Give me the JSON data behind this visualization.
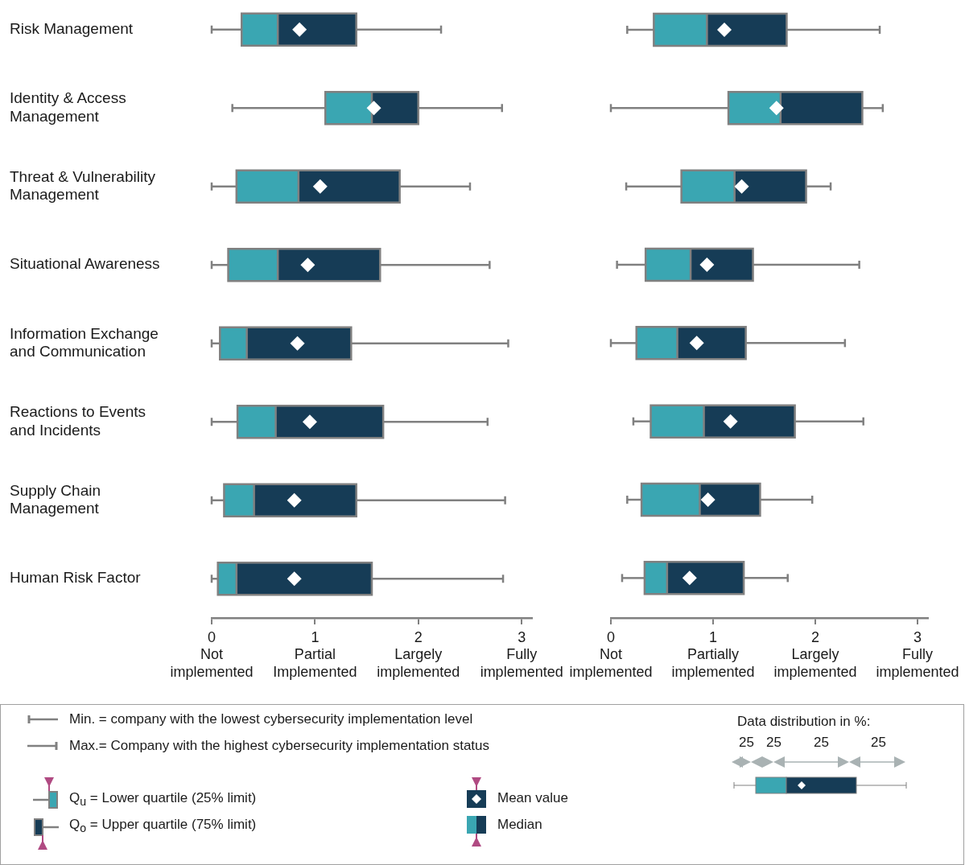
{
  "chart_data": [
    {
      "type": "box",
      "orientation": "horizontal",
      "categories": [
        "Risk Management",
        "Identity & Access Management",
        "Threat & Vulnerability Management",
        "Situational Awareness",
        "Information Exchange and Communication",
        "Reactions to Events and Incidents",
        "Supply Chain Management",
        "Human Risk Factor"
      ],
      "color": "#3aa6b2",
      "xlim": [
        0,
        3.1
      ],
      "xticks": [
        {
          "value": 0,
          "label": "0\nNot\nimplemented"
        },
        {
          "value": 1,
          "label": "1\nPartial\nImplemented"
        },
        {
          "value": 2,
          "label": "2\nLargely\nimplemented"
        },
        {
          "value": 3,
          "label": "3\nFully\nimplemented"
        }
      ],
      "boxes": [
        {
          "low": 0,
          "q1": 0.29,
          "median": 0.64,
          "q3": 1.4,
          "high": 2.22,
          "mean": 0.85
        },
        {
          "low": 0.2,
          "q1": 1.1,
          "median": 1.55,
          "q3": 2.0,
          "high": 2.81,
          "mean": 1.57
        },
        {
          "low": 0,
          "q1": 0.24,
          "median": 0.84,
          "q3": 1.82,
          "high": 2.5,
          "mean": 1.05
        },
        {
          "low": 0,
          "q1": 0.16,
          "median": 0.64,
          "q3": 1.63,
          "high": 2.69,
          "mean": 0.93
        },
        {
          "low": 0,
          "q1": 0.08,
          "median": 0.34,
          "q3": 1.35,
          "high": 2.87,
          "mean": 0.83
        },
        {
          "low": 0,
          "q1": 0.25,
          "median": 0.62,
          "q3": 1.66,
          "high": 2.67,
          "mean": 0.95
        },
        {
          "low": 0,
          "q1": 0.12,
          "median": 0.41,
          "q3": 1.4,
          "high": 2.84,
          "mean": 0.8
        },
        {
          "low": 0,
          "q1": 0.06,
          "median": 0.24,
          "q3": 1.55,
          "high": 2.82,
          "mean": 0.8
        }
      ]
    },
    {
      "type": "box",
      "orientation": "horizontal",
      "tick_labels": "x",
      "categories": [
        null,
        null,
        null,
        null,
        null,
        null,
        null,
        null
      ],
      "color": "#3aa6b2",
      "xlim": [
        0,
        3.1
      ],
      "xticks": [
        {
          "value": 0,
          "label": "0\nNot\nimplemented"
        },
        {
          "value": 1,
          "label": "1\nPartially\nimplemented"
        },
        {
          "value": 2,
          "label": "2\nLargely\nimplemented"
        },
        {
          "value": 3,
          "label": "3\nFully\nimplemented"
        }
      ],
      "boxes": [
        {
          "low": 0.16,
          "q1": 0.42,
          "median": 0.94,
          "q3": 1.72,
          "high": 2.63,
          "mean": 1.11
        },
        {
          "low": 0,
          "q1": 1.15,
          "median": 1.66,
          "q3": 2.46,
          "high": 2.66,
          "mean": 1.62
        },
        {
          "low": 0.15,
          "q1": 0.69,
          "median": 1.21,
          "q3": 1.91,
          "high": 2.15,
          "mean": 1.28
        },
        {
          "low": 0.06,
          "q1": 0.34,
          "median": 0.78,
          "q3": 1.39,
          "high": 2.43,
          "mean": 0.94
        },
        {
          "low": 0,
          "q1": 0.25,
          "median": 0.65,
          "q3": 1.32,
          "high": 2.29,
          "mean": 0.84
        },
        {
          "low": 0.22,
          "q1": 0.39,
          "median": 0.91,
          "q3": 1.8,
          "high": 2.47,
          "mean": 1.17
        },
        {
          "low": 0.16,
          "q1": 0.3,
          "median": 0.87,
          "q3": 1.46,
          "high": 1.97,
          "mean": 0.95
        },
        {
          "low": 0.11,
          "q1": 0.33,
          "median": 0.55,
          "q3": 1.3,
          "high": 1.73,
          "mean": 0.77
        }
      ]
    },
    {
      "type": "other",
      "annotations": [
        "Min. = company with the lowest cybersecurity implementation level",
        "Max.= Company with the highest cybersecurity implementation status",
        "Q$_{u}$ = Lower quartile (25% limit)",
        "Q$_{o}$ = Upper quartile (75% limit)",
        "Mean value",
        "Median",
        "Data distribution in %:",
        "25",
        "25",
        "25",
        "25"
      ]
    }
  ]
}
